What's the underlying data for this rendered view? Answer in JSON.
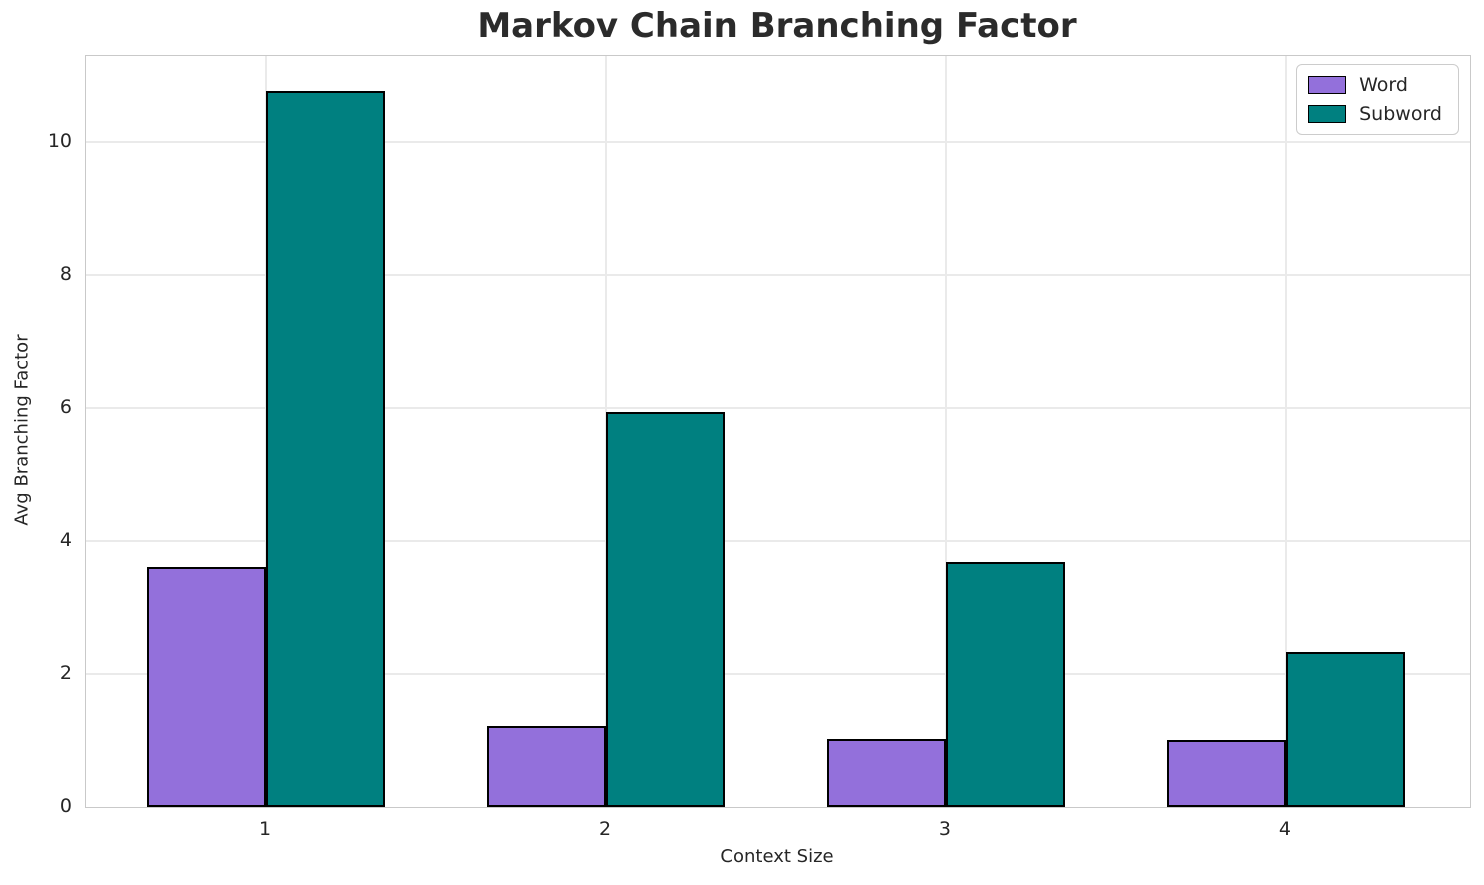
{
  "title": "Markov Chain Branching Factor",
  "colors": {
    "word": "#9370DB",
    "subword": "#008080",
    "bar_edge": "#000000",
    "grid": "#eaeaea",
    "spine": "#c9c9c9",
    "text": "#262626"
  },
  "legend": {
    "position": "upper-right",
    "items": [
      {
        "label": "Word",
        "color": "#9370DB"
      },
      {
        "label": "Subword",
        "color": "#008080"
      }
    ]
  },
  "chart_data": {
    "type": "bar",
    "title": "Markov Chain Branching Factor",
    "xlabel": "Context Size",
    "ylabel": "Avg Branching Factor",
    "categories": [
      "1",
      "2",
      "3",
      "4"
    ],
    "series": [
      {
        "name": "Word",
        "color": "#9370DB",
        "values": [
          3.61,
          1.22,
          1.03,
          1.01
        ]
      },
      {
        "name": "Subword",
        "color": "#008080",
        "values": [
          10.78,
          5.95,
          3.68,
          2.33
        ]
      }
    ],
    "ylim": [
      0,
      11.3
    ],
    "yticks": [
      0,
      2,
      4,
      6,
      8,
      10
    ],
    "grid": true,
    "legend_position": "upper-right"
  }
}
